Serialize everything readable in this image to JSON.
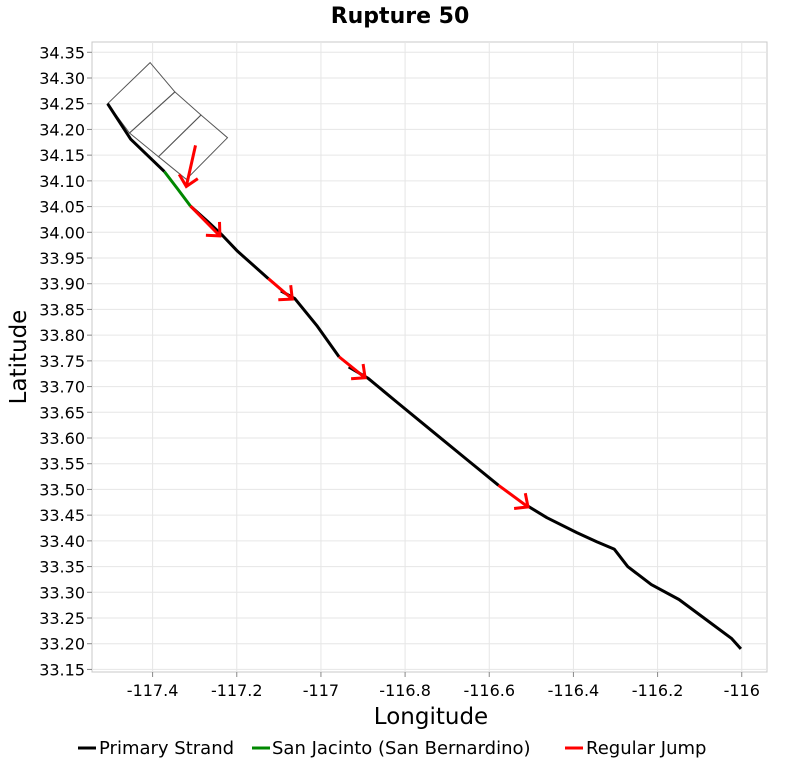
{
  "chart_data": {
    "type": "line",
    "title": "Rupture 50",
    "xlabel": "Longitude",
    "ylabel": "Latitude",
    "xlim": [
      -117.544,
      -115.94
    ],
    "ylim": [
      33.145,
      34.37
    ],
    "grid": true,
    "x_ticks": [
      "-117.4",
      "-117.2",
      "-117",
      "-116.8",
      "-116.6",
      "-116.4",
      "-116.2",
      "-116"
    ],
    "x_tick_values": [
      -117.4,
      -117.2,
      -117.0,
      -116.8,
      -116.6,
      -116.4,
      -116.2,
      -116.0
    ],
    "y_ticks": [
      "33.15",
      "33.20",
      "33.25",
      "33.30",
      "33.35",
      "33.40",
      "33.45",
      "33.50",
      "33.55",
      "33.60",
      "33.65",
      "33.70",
      "33.75",
      "33.80",
      "33.85",
      "33.90",
      "33.95",
      "34.00",
      "34.05",
      "34.10",
      "34.15",
      "34.20",
      "34.25",
      "34.30",
      "34.35"
    ],
    "y_tick_values": [
      33.15,
      33.2,
      33.25,
      33.3,
      33.35,
      33.4,
      33.45,
      33.5,
      33.55,
      33.6,
      33.65,
      33.7,
      33.75,
      33.8,
      33.85,
      33.9,
      33.95,
      34.0,
      34.05,
      34.1,
      34.15,
      34.2,
      34.25,
      34.3,
      34.35
    ],
    "legend_position": "bottom",
    "series": [
      {
        "name": "Primary Strand",
        "color": "#000000",
        "segments": [
          [
            [
              -117.507,
              34.25
            ],
            [
              -117.452,
              34.181
            ],
            [
              -117.414,
              34.151
            ],
            [
              -117.372,
              34.118
            ]
          ],
          [
            [
              -117.31,
              34.051
            ],
            [
              -117.269,
              34.021
            ],
            [
              -117.233,
              33.993
            ],
            [
              -117.198,
              33.963
            ],
            [
              -117.125,
              33.91
            ]
          ],
          [
            [
              -117.095,
              33.886
            ],
            [
              -117.062,
              33.871
            ],
            [
              -117.01,
              33.819
            ],
            [
              -116.957,
              33.758
            ]
          ],
          [
            [
              -116.934,
              33.738
            ],
            [
              -116.888,
              33.716
            ],
            [
              -116.82,
              33.67
            ],
            [
              -116.735,
              33.613
            ],
            [
              -116.65,
              33.556
            ],
            [
              -116.578,
              33.508
            ]
          ],
          [
            [
              -116.513,
              33.47
            ],
            [
              -116.463,
              33.445
            ],
            [
              -116.392,
              33.416
            ],
            [
              -116.344,
              33.398
            ],
            [
              -116.303,
              33.384
            ],
            [
              -116.271,
              33.35
            ],
            [
              -116.215,
              33.315
            ],
            [
              -116.149,
              33.286
            ],
            [
              -116.093,
              33.252
            ],
            [
              -116.024,
              33.21
            ],
            [
              -116.002,
              33.19
            ]
          ]
        ]
      },
      {
        "name": "San Jacinto (San Bernardino)",
        "color": "#008800",
        "segments": [
          [
            [
              -117.372,
              34.118
            ],
            [
              -117.341,
              34.085
            ],
            [
              -117.31,
              34.051
            ]
          ]
        ]
      },
      {
        "name": "Regular Jump",
        "color": "#ff0000",
        "jumps": [
          [
            [
              -117.298,
              34.169
            ],
            [
              -117.32,
              34.089
            ]
          ],
          [
            [
              -117.31,
              34.051
            ],
            [
              -117.24,
              33.993
            ]
          ],
          [
            [
              -117.125,
              33.91
            ],
            [
              -117.068,
              33.87
            ]
          ],
          [
            [
              -116.957,
              33.758
            ],
            [
              -116.895,
              33.717
            ]
          ],
          [
            [
              -116.578,
              33.508
            ],
            [
              -116.508,
              33.466
            ]
          ]
        ]
      }
    ],
    "outline": {
      "color": "#555555",
      "polygons": [
        [
          [
            -117.507,
            34.25
          ],
          [
            -117.406,
            34.33
          ],
          [
            -117.347,
            34.273
          ],
          [
            -117.455,
            34.193
          ]
        ],
        [
          [
            -117.455,
            34.193
          ],
          [
            -117.347,
            34.273
          ],
          [
            -117.285,
            34.228
          ],
          [
            -117.386,
            34.147
          ]
        ],
        [
          [
            -117.386,
            34.147
          ],
          [
            -117.285,
            34.228
          ],
          [
            -117.222,
            34.184
          ],
          [
            -117.32,
            34.103
          ]
        ]
      ]
    }
  }
}
